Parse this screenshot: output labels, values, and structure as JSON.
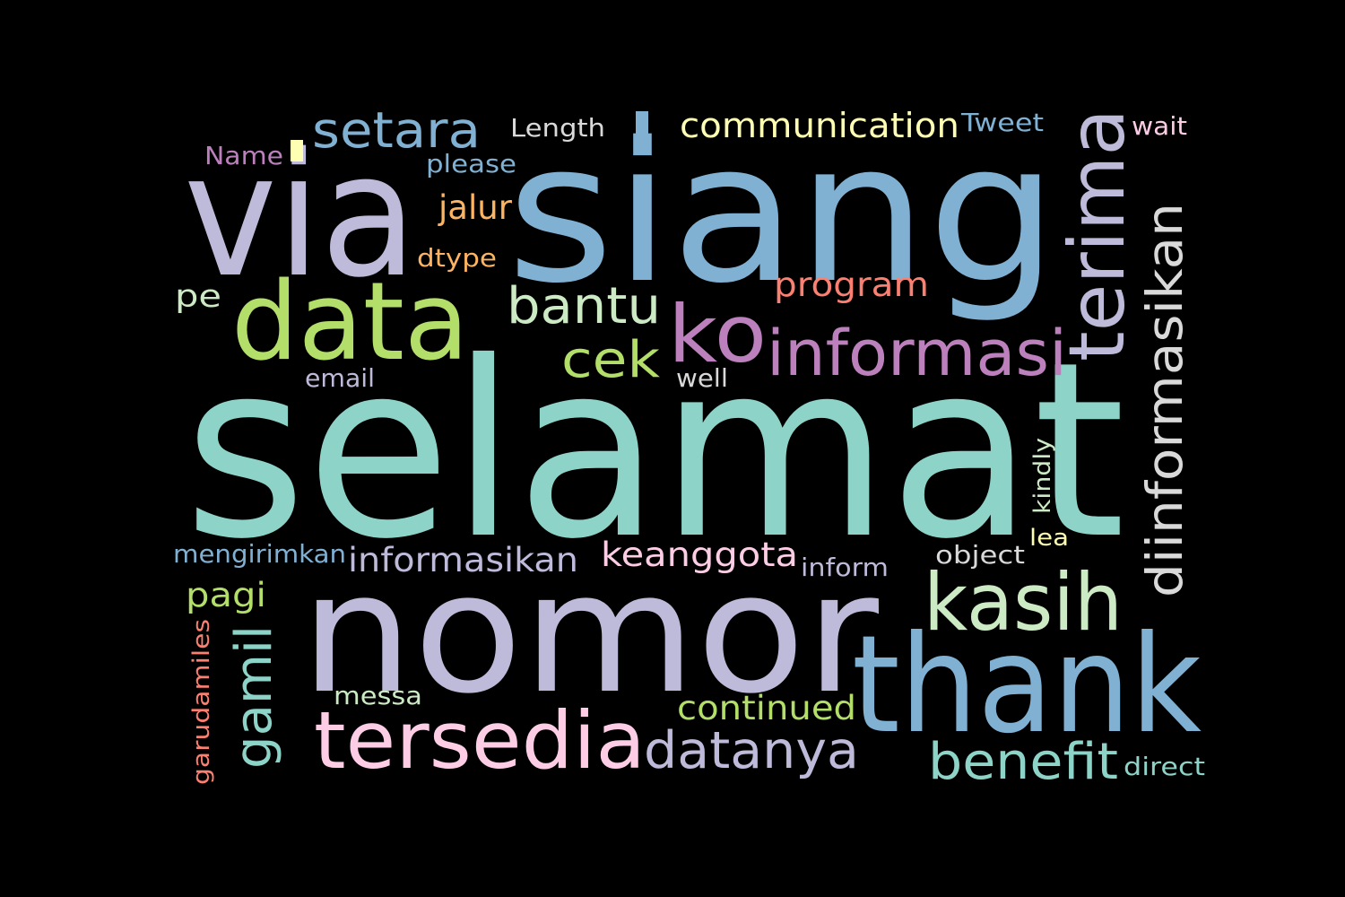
{
  "background": "#000000",
  "words": [
    {
      "id": "selamat",
      "text": "selamat",
      "color": "#8dd3c7"
    },
    {
      "id": "siang",
      "text": "siang",
      "color": "#80b1d3"
    },
    {
      "id": "via",
      "text": "via",
      "color": "#bebada"
    },
    {
      "id": "nomor",
      "text": "nomor",
      "color": "#bebada"
    },
    {
      "id": "thank",
      "text": "thank",
      "color": "#80b1d3"
    },
    {
      "id": "data",
      "text": "data",
      "color": "#b3de69"
    },
    {
      "id": "terima",
      "text": "terima",
      "color": "#bebada"
    },
    {
      "id": "tersedia",
      "text": "tersedia",
      "color": "#fccde5"
    },
    {
      "id": "kasih",
      "text": "kasih",
      "color": "#ccebc5"
    },
    {
      "id": "informasi",
      "text": "informasi",
      "color": "#bc80bd"
    },
    {
      "id": "ko",
      "text": "ko",
      "color": "#bc80bd"
    },
    {
      "id": "diinformasikan",
      "text": "diinformasikan",
      "color": "#d9d9d9"
    },
    {
      "id": "setara",
      "text": "setara",
      "color": "#80b1d3"
    },
    {
      "id": "bantu",
      "text": "bantu",
      "color": "#ccebc5"
    },
    {
      "id": "cek",
      "text": "cek",
      "color": "#b3de69"
    },
    {
      "id": "datanya",
      "text": "datanya",
      "color": "#bebada"
    },
    {
      "id": "benefit",
      "text": "benefit",
      "color": "#8dd3c7"
    },
    {
      "id": "gamil",
      "text": "gamil",
      "color": "#8dd3c7"
    },
    {
      "id": "informasikan",
      "text": "informasikan",
      "color": "#bebada"
    },
    {
      "id": "communication",
      "text": "communication",
      "color": "#ffffb3"
    },
    {
      "id": "keanggota",
      "text": "keanggota",
      "color": "#fccde5"
    },
    {
      "id": "continued",
      "text": "continued",
      "color": "#b3de69"
    },
    {
      "id": "program",
      "text": "program",
      "color": "#fb8072"
    },
    {
      "id": "jalur",
      "text": "jalur",
      "color": "#fdb462"
    },
    {
      "id": "pagi",
      "text": "pagi",
      "color": "#b3de69"
    },
    {
      "id": "Length",
      "text": "Length",
      "color": "#d9d9d9"
    },
    {
      "id": "Tweet",
      "text": "Tweet",
      "color": "#80b1d3"
    },
    {
      "id": "please",
      "text": "please",
      "color": "#80b1d3"
    },
    {
      "id": "Name",
      "text": "Name",
      "color": "#bc80bd"
    },
    {
      "id": "wait",
      "text": "wait",
      "color": "#fccde5"
    },
    {
      "id": "dtype",
      "text": "dtype",
      "color": "#fdb462"
    },
    {
      "id": "pe",
      "text": "pe",
      "color": "#ccebc5"
    },
    {
      "id": "email",
      "text": "email",
      "color": "#bebada"
    },
    {
      "id": "well",
      "text": "well",
      "color": "#d9d9d9"
    },
    {
      "id": "mengirimkan",
      "text": "mengirimkan",
      "color": "#80b1d3"
    },
    {
      "id": "inform",
      "text": "inform",
      "color": "#bebada"
    },
    {
      "id": "object",
      "text": "object",
      "color": "#d9d9d9"
    },
    {
      "id": "kindly",
      "text": "kindly",
      "color": "#ccebc5"
    },
    {
      "id": "lea",
      "text": "lea",
      "color": "#ffffb3"
    },
    {
      "id": "messa",
      "text": "messa",
      "color": "#ccebc5"
    },
    {
      "id": "garudamiles",
      "text": "garudamiles",
      "color": "#fb8072"
    },
    {
      "id": "direct",
      "text": "direct",
      "color": "#8dd3c7"
    },
    {
      "id": "small_bar_1",
      "text": "",
      "color": "#80b1d3"
    },
    {
      "id": "small_bar_2",
      "text": "",
      "color": "#ffffb3"
    }
  ]
}
